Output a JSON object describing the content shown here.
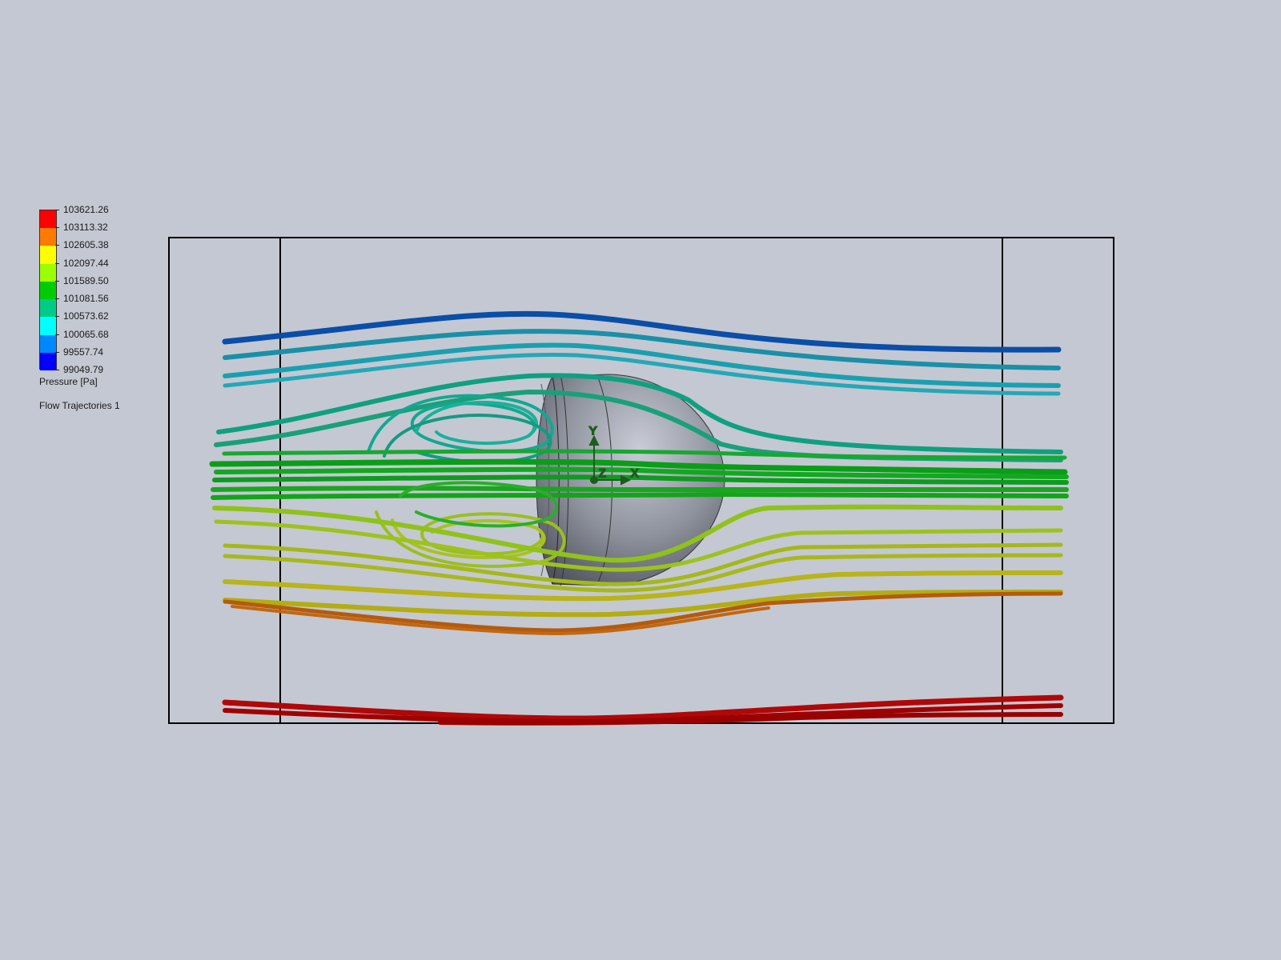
{
  "legend": {
    "title": "Pressure [Pa]",
    "plot_name": "Flow Trajectories 1",
    "labels": [
      "103621.26",
      "103113.32",
      "102605.38",
      "102097.44",
      "101589.50",
      "101081.56",
      "100573.62",
      "100065.68",
      "99557.74",
      "99049.79"
    ],
    "colors": [
      "#ff0000",
      "#ff7a00",
      "#ffff00",
      "#9bff00",
      "#00cc00",
      "#00cc88",
      "#00ffff",
      "#0088ff",
      "#0000ff"
    ]
  },
  "axes": {
    "y": "Y",
    "z": "Z",
    "x": "X"
  },
  "colors": {
    "background": "#c4c8d2",
    "box_edge": "#000000",
    "body": "#8f939e",
    "triad": "#1d5c1d"
  }
}
